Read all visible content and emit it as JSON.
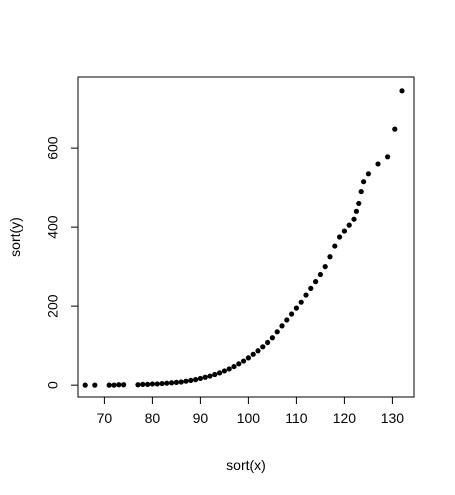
{
  "chart_data": {
    "type": "scatter",
    "title": "",
    "xlabel": "sort(x)",
    "ylabel": "sort(y)",
    "xlim": [
      64.5,
      134.5
    ],
    "ylim": [
      -30,
      780
    ],
    "x_ticks": [
      70,
      80,
      90,
      100,
      110,
      120,
      130
    ],
    "y_ticks": [
      0,
      200,
      400,
      600
    ],
    "grid": false,
    "legend": "none",
    "point_color": "#000000",
    "points": [
      [
        66,
        0
      ],
      [
        68,
        0
      ],
      [
        71,
        0
      ],
      [
        72,
        0
      ],
      [
        73,
        1
      ],
      [
        74,
        1
      ],
      [
        77,
        1
      ],
      [
        78,
        2
      ],
      [
        79,
        2
      ],
      [
        80,
        3
      ],
      [
        81,
        3
      ],
      [
        82,
        4
      ],
      [
        83,
        5
      ],
      [
        84,
        6
      ],
      [
        85,
        7
      ],
      [
        86,
        8
      ],
      [
        87,
        10
      ],
      [
        88,
        12
      ],
      [
        89,
        14
      ],
      [
        90,
        17
      ],
      [
        91,
        20
      ],
      [
        92,
        23
      ],
      [
        93,
        27
      ],
      [
        94,
        31
      ],
      [
        95,
        36
      ],
      [
        96,
        41
      ],
      [
        97,
        47
      ],
      [
        98,
        54
      ],
      [
        99,
        61
      ],
      [
        100,
        69
      ],
      [
        101,
        78
      ],
      [
        102,
        87
      ],
      [
        103,
        97
      ],
      [
        104,
        108
      ],
      [
        105,
        120
      ],
      [
        106,
        135
      ],
      [
        107,
        150
      ],
      [
        108,
        165
      ],
      [
        109,
        180
      ],
      [
        110,
        195
      ],
      [
        111,
        210
      ],
      [
        112,
        228
      ],
      [
        113,
        245
      ],
      [
        114,
        262
      ],
      [
        115,
        280
      ],
      [
        116,
        300
      ],
      [
        117,
        325
      ],
      [
        118,
        352
      ],
      [
        119,
        375
      ],
      [
        120,
        390
      ],
      [
        121,
        405
      ],
      [
        122,
        420
      ],
      [
        122.5,
        440
      ],
      [
        123,
        460
      ],
      [
        123.5,
        490
      ],
      [
        124,
        515
      ],
      [
        125,
        535
      ],
      [
        127,
        560
      ],
      [
        129,
        578
      ],
      [
        130.5,
        648
      ],
      [
        132,
        745
      ]
    ]
  }
}
